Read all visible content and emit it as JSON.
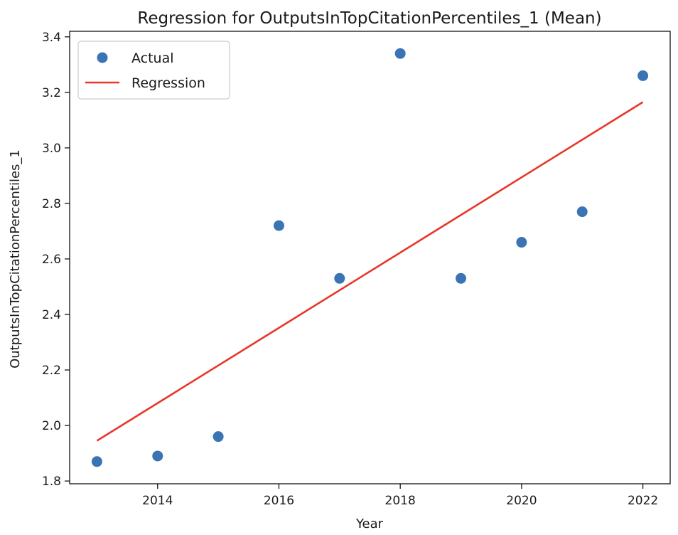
{
  "chart_data": {
    "type": "scatter",
    "title": "Regression for OutputsInTopCitationPercentiles_1 (Mean)",
    "xlabel": "Year",
    "ylabel": "OutputsInTopCitationPercentiles_1",
    "xlim": [
      2012.55,
      2022.45
    ],
    "ylim": [
      1.79,
      3.42
    ],
    "xticks": [
      2014,
      2016,
      2018,
      2020,
      2022
    ],
    "yticks": [
      1.8,
      2.0,
      2.2,
      2.4,
      2.6,
      2.8,
      3.0,
      3.2,
      3.4
    ],
    "grid": false,
    "legend_position": "top-left",
    "series": [
      {
        "name": "Actual",
        "kind": "scatter",
        "color": "#3a74b4",
        "x": [
          2013,
          2014,
          2015,
          2016,
          2017,
          2018,
          2019,
          2020,
          2021,
          2022
        ],
        "y": [
          1.87,
          1.89,
          1.96,
          2.72,
          2.53,
          3.34,
          2.53,
          2.66,
          2.77,
          3.26
        ]
      },
      {
        "name": "Regression",
        "kind": "line",
        "color": "#e8372c",
        "x": [
          2013,
          2022
        ],
        "y": [
          1.945,
          3.165
        ]
      }
    ]
  }
}
